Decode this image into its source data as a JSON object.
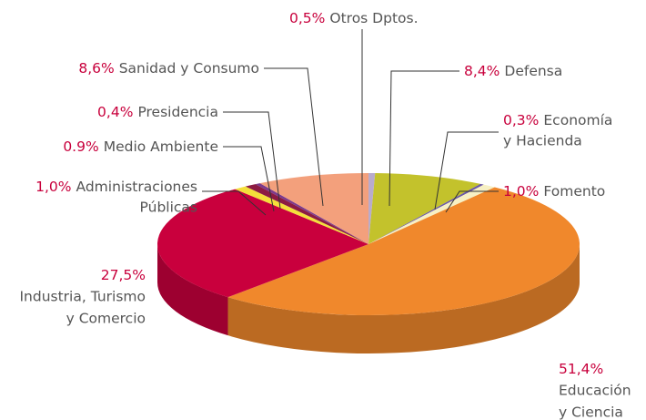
{
  "chart_data": {
    "type": "pie",
    "categories": [
      [
        "Otros Dptos."
      ],
      [
        "Defensa"
      ],
      [
        "Economía",
        "y Hacienda"
      ],
      [
        "Fomento"
      ],
      [
        "Educación",
        "y Ciencia"
      ],
      [
        "Industria, Turismo",
        "y Comercio"
      ],
      [
        "Administraciones",
        "Públicas"
      ],
      [
        "Medio Ambiente"
      ],
      [
        "Presidencia"
      ],
      [
        "Sanidad y Consumo"
      ]
    ],
    "values": [
      0.5,
      8.4,
      0.3,
      1.0,
      51.4,
      27.5,
      1.0,
      0.9,
      0.4,
      8.6
    ],
    "value_labels": [
      "0,5%",
      "8,4%",
      "0,3%",
      "1,0%",
      "51,4%",
      "27,5%",
      "1,0%",
      "0.9%",
      "0,4%",
      "8,6%"
    ],
    "colors": [
      "#b9abcc",
      "#c3c22c",
      "#6b5aa6",
      "#f7f0c4",
      "#f0882c",
      "#c9003d",
      "#f4df3a",
      "#8c1b43",
      "#7b3b8d",
      "#f3a07c"
    ]
  }
}
